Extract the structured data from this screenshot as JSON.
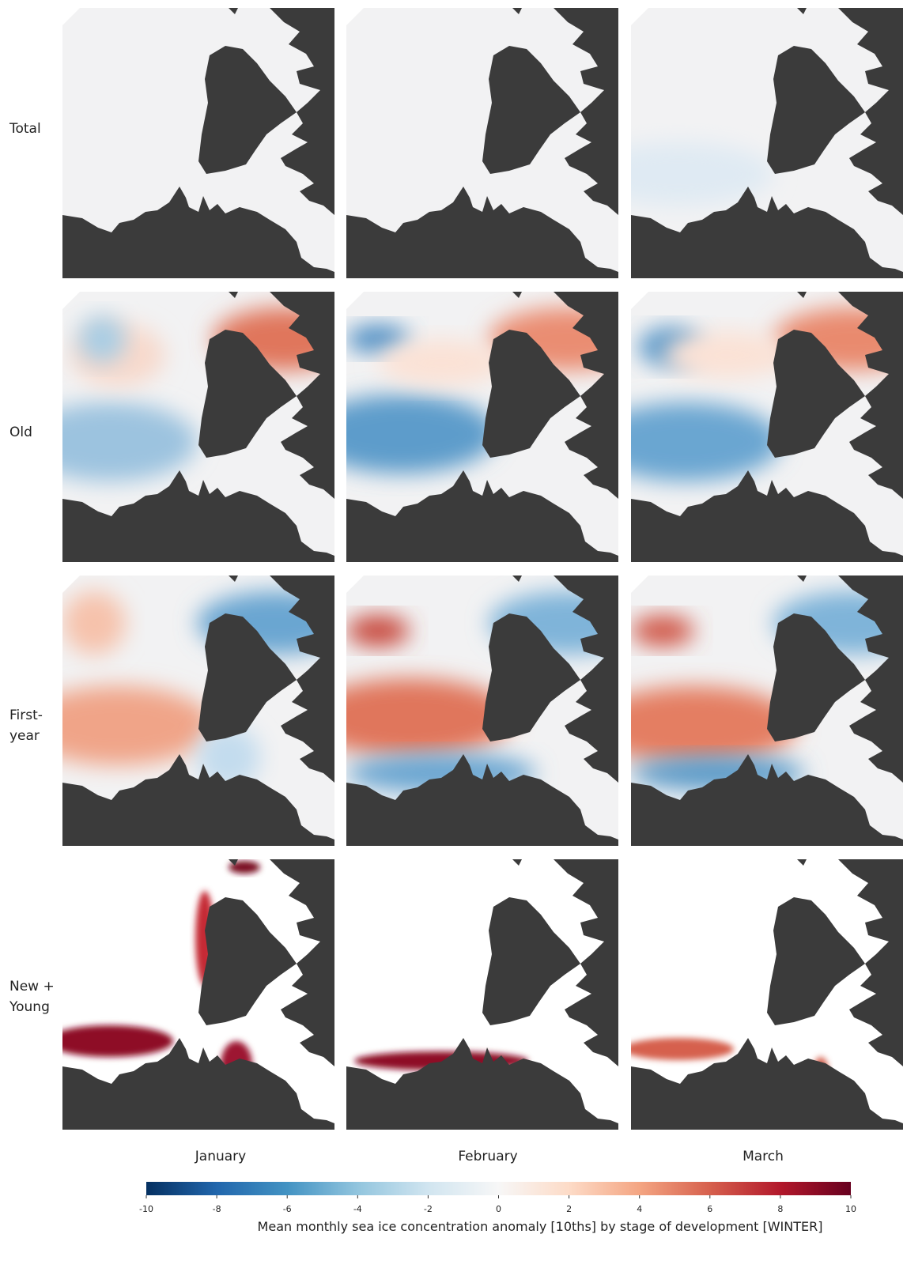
{
  "rows": [
    [
      "Total"
    ],
    [
      "Old"
    ],
    [
      "First-",
      "year"
    ],
    [
      "New +",
      "Young"
    ]
  ],
  "columns": [
    "January",
    "February",
    "March"
  ],
  "colorbar": {
    "lim": [
      -10,
      10
    ],
    "ticks": [
      -10,
      -8,
      -6,
      -4,
      -2,
      0,
      2,
      4,
      6,
      8,
      10
    ],
    "label": "Mean monthly sea ice concentration anomaly [10ths] by stage of development  [WINTER]"
  }
}
